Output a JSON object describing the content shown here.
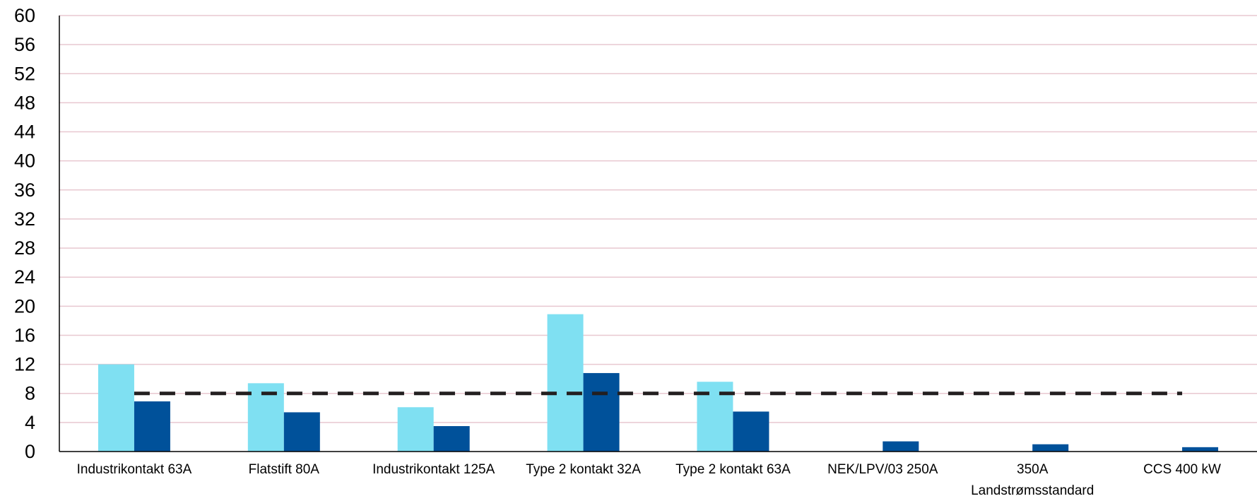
{
  "chart_data": {
    "type": "bar",
    "title": "",
    "xlabel": "",
    "ylabel": "",
    "ylim": [
      0,
      60
    ],
    "yticks": [
      0,
      4,
      8,
      12,
      16,
      20,
      24,
      28,
      32,
      36,
      40,
      44,
      48,
      52,
      56,
      60
    ],
    "grid": true,
    "legend": "none",
    "categories": [
      [
        "Industrikontakt 63A"
      ],
      [
        "Flatstift 80A"
      ],
      [
        "Industrikontakt 125A"
      ],
      [
        "Type 2 kontakt 32A"
      ],
      [
        "Type 2 kontakt 63A"
      ],
      [
        "NEK/LPV/03 250A"
      ],
      [
        "350A",
        "Landstrømsstandard"
      ],
      [
        "CCS 400 kW"
      ]
    ],
    "series": [
      {
        "color": "#7fe0f2",
        "values": [
          12,
          9.4,
          6.1,
          18.9,
          9.6,
          0,
          0,
          0
        ]
      },
      {
        "color": "#00519a",
        "values": [
          6.9,
          5.4,
          3.5,
          10.8,
          5.5,
          1.4,
          1.0,
          0.6
        ]
      }
    ],
    "reference_line": {
      "value": 8,
      "style": "dashed",
      "color": "#231f20"
    },
    "colors": {
      "grid": "#e8c8d0",
      "axis": "#000000"
    }
  }
}
